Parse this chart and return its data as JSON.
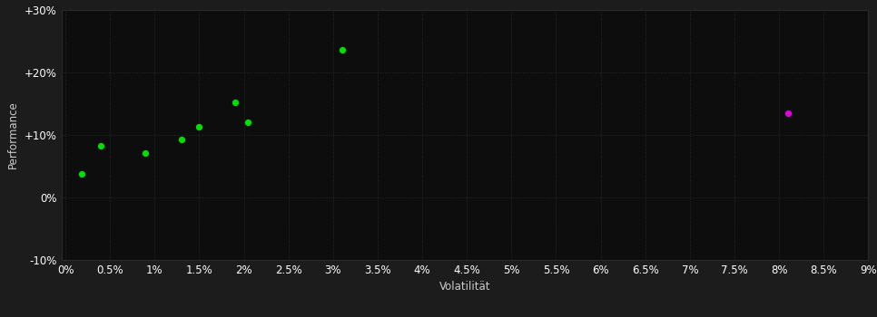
{
  "background_color": "#1c1c1c",
  "plot_bg_color": "#0d0d0d",
  "grid_color": "#2a2a2a",
  "tick_color": "#ffffff",
  "label_color": "#cccccc",
  "xlabel": "Volatilität",
  "ylabel": "Performance",
  "green_points": [
    [
      0.0018,
      0.038
    ],
    [
      0.004,
      0.082
    ],
    [
      0.009,
      0.07
    ],
    [
      0.013,
      0.092
    ],
    [
      0.015,
      0.112
    ],
    [
      0.019,
      0.152
    ],
    [
      0.0205,
      0.12
    ],
    [
      0.031,
      0.235
    ]
  ],
  "magenta_points": [
    [
      0.081,
      0.135
    ]
  ],
  "green_color": "#00dd00",
  "magenta_color": "#dd00dd",
  "xlim": [
    -0.00045,
    0.09
  ],
  "ylim": [
    -0.1,
    0.3
  ],
  "xtick_values": [
    0.0,
    0.005,
    0.01,
    0.015,
    0.02,
    0.025,
    0.03,
    0.035,
    0.04,
    0.045,
    0.05,
    0.055,
    0.06,
    0.065,
    0.07,
    0.075,
    0.08,
    0.085,
    0.09
  ],
  "ytick_vals": [
    -0.1,
    0.0,
    0.1,
    0.2,
    0.3
  ],
  "ytick_labels": [
    "-10%",
    "0%",
    "+10%",
    "+20%",
    "+30%"
  ],
  "marker_size": 28,
  "font_size": 8.5
}
